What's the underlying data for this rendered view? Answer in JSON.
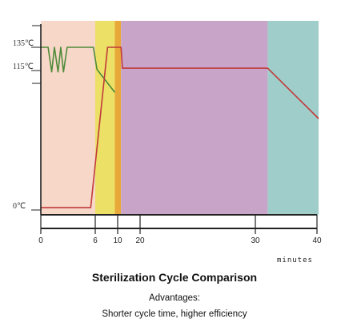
{
  "chart_data": {
    "type": "line",
    "title": "Sterilization Cycle Comparison",
    "subtitle_heading": "Advantages:",
    "subtitle_text": "Shorter cycle time, higher efficiency",
    "xlabel": "minutes",
    "ylabel": "",
    "x_ticks": [
      "0",
      "6",
      "10",
      "20",
      "30",
      "40"
    ],
    "y_ticks": [
      "135℃",
      "115℃",
      "0℃"
    ],
    "phases": [
      {
        "start": 0,
        "end": 6,
        "color": "#f7d8c8"
      },
      {
        "start": 6,
        "end": 9.5,
        "color": "#ece066"
      },
      {
        "start": 9.5,
        "end": 11.5,
        "color": "#e8a93a"
      },
      {
        "start": 11.5,
        "end": 32,
        "color": "#c9a4c9"
      },
      {
        "start": 32,
        "end": 41,
        "color": "#9fcdca"
      }
    ],
    "series": [
      {
        "color": "#4f8a3a",
        "points": [
          [
            0,
            135
          ],
          [
            0.8,
            135
          ],
          [
            1.2,
            114
          ],
          [
            1.5,
            135
          ],
          [
            1.9,
            114
          ],
          [
            2.2,
            135
          ],
          [
            2.5,
            114
          ],
          [
            2.9,
            135
          ],
          [
            5.8,
            135
          ],
          [
            6.3,
            116
          ],
          [
            9.5,
            99
          ]
        ]
      },
      {
        "color": "#c03a3a",
        "points": [
          [
            0,
            2
          ],
          [
            5.5,
            2
          ],
          [
            8.2,
            135
          ],
          [
            11.5,
            135
          ],
          [
            12.1,
            117
          ],
          [
            32,
            117
          ],
          [
            41,
            80
          ]
        ]
      }
    ]
  }
}
